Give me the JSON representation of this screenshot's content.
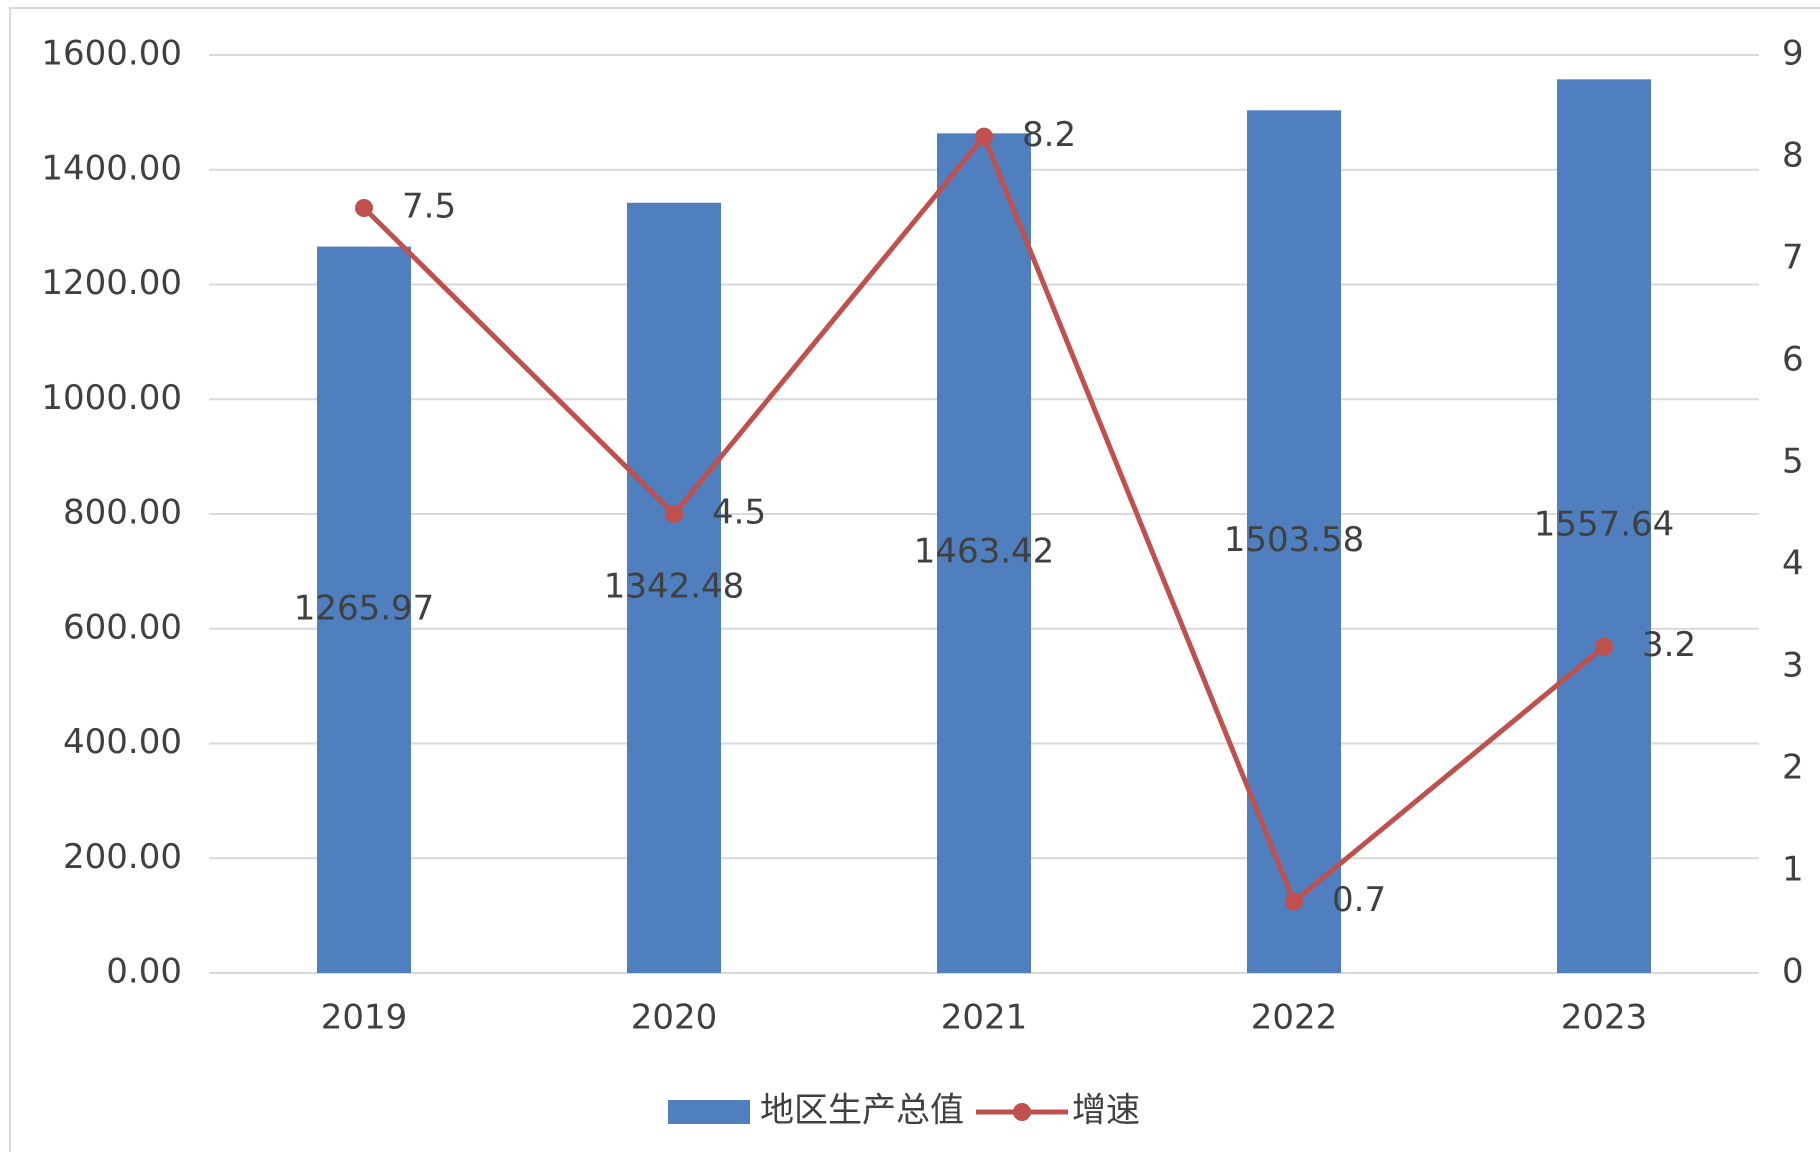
{
  "chart_data": {
    "type": "bar",
    "categories": [
      "2019",
      "2020",
      "2021",
      "2022",
      "2023"
    ],
    "series": [
      {
        "name": "地区生产总值",
        "type": "bar",
        "color": "#4f7fbf",
        "values": [
          1265.97,
          1342.48,
          1463.42,
          1503.58,
          1557.64
        ]
      },
      {
        "name": "增速",
        "type": "line",
        "axis": "y2",
        "color": "#c0504d",
        "values": [
          7.5,
          4.5,
          8.2,
          0.7,
          3.2
        ]
      }
    ],
    "ylim": [
      0,
      1600
    ],
    "yticks": [
      {
        "value": 0,
        "label": "0.00"
      },
      {
        "value": 200,
        "label": "200.00"
      },
      {
        "value": 400,
        "label": "400.00"
      },
      {
        "value": 600,
        "label": "600.00"
      },
      {
        "value": 800,
        "label": "800.00"
      },
      {
        "value": 1000,
        "label": "1000.00"
      },
      {
        "value": 1200,
        "label": "1200.00"
      },
      {
        "value": 1400,
        "label": "1400.00"
      },
      {
        "value": 1600,
        "label": "1600.00"
      }
    ],
    "y2lim": [
      0,
      9
    ],
    "y2ticks": [
      0,
      1,
      2,
      3,
      4,
      5,
      6,
      7,
      8,
      9
    ],
    "grid": true,
    "legend": "bottom"
  }
}
